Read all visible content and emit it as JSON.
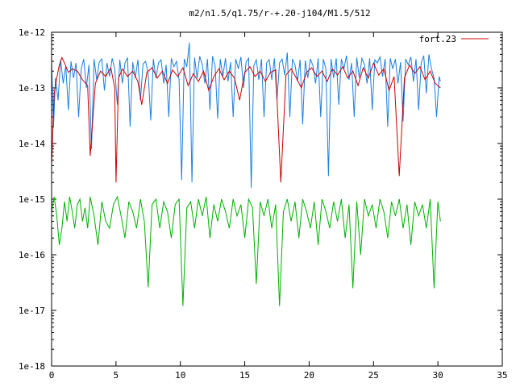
{
  "chart_data": {
    "type": "line",
    "title": "m2/n1.5/q1.75/r-+.20-j104/M1.5/512",
    "xlabel": "",
    "ylabel": "",
    "xlim": [
      0,
      35
    ],
    "ylim": [
      1e-18,
      1e-12
    ],
    "y_scale": "log",
    "grid": false,
    "legend_position": "top-right",
    "x_ticks": [
      "0",
      "5",
      "10",
      "15",
      "20",
      "25",
      "30",
      "35"
    ],
    "y_ticks": [
      "1e-18",
      "1e-17",
      "1e-16",
      "1e-15",
      "1e-14",
      "1e-13",
      "1e-12"
    ],
    "series": [
      {
        "name": "fort.23",
        "color": "#cc0000",
        "x": [
          0.0,
          0.2,
          0.4,
          0.6,
          0.8,
          1.0,
          1.3,
          1.6,
          2.0,
          2.4,
          2.8,
          3.0,
          3.4,
          3.8,
          4.2,
          4.6,
          4.9,
          5.0,
          5.2,
          5.5,
          5.9,
          6.3,
          6.7,
          7.0,
          7.4,
          7.8,
          8.2,
          8.6,
          9.0,
          9.4,
          9.8,
          10.2,
          10.6,
          11.0,
          11.4,
          11.8,
          12.2,
          12.6,
          13.0,
          13.4,
          13.8,
          14.2,
          14.6,
          15.0,
          15.4,
          15.8,
          16.2,
          16.6,
          17.0,
          17.4,
          17.8,
          18.2,
          18.6,
          19.0,
          19.4,
          19.8,
          20.2,
          20.6,
          21.0,
          21.4,
          21.8,
          22.2,
          22.6,
          23.0,
          23.4,
          23.8,
          24.2,
          24.6,
          25.0,
          25.4,
          25.8,
          26.2,
          26.6,
          27.0,
          27.4,
          27.8,
          28.2,
          28.6,
          29.0,
          29.4,
          29.8,
          30.2
        ],
        "y": [
          4e-15,
          8e-14,
          1.5e-13,
          2.6e-13,
          3.5e-13,
          2.8e-13,
          1.9e-13,
          2.2e-13,
          2e-13,
          1.4e-13,
          1.1e-13,
          6e-15,
          1.2e-13,
          2e-13,
          1.6e-13,
          2.3e-13,
          1e-13,
          2e-15,
          1.5e-13,
          2.2e-13,
          1.6e-13,
          2e-13,
          1.3e-13,
          5e-14,
          1.9e-13,
          2.3e-13,
          1.5e-13,
          2e-13,
          1.2e-13,
          2.1e-13,
          1.6e-13,
          2.3e-13,
          1.1e-13,
          1.8e-13,
          1.3e-13,
          2e-13,
          9e-14,
          1.6e-13,
          2.2e-13,
          1.4e-13,
          2e-13,
          1.5e-13,
          6e-14,
          1.9e-13,
          2.4e-13,
          1.6e-13,
          2e-13,
          1.3e-13,
          1.9e-13,
          2.1e-13,
          2e-15,
          1.7e-13,
          2.2e-13,
          1.5e-13,
          1e-13,
          1.9e-13,
          2.3e-13,
          1.6e-13,
          2e-13,
          1.3e-13,
          2.2e-13,
          1.7e-13,
          2.4e-13,
          1.5e-13,
          2e-13,
          1.1e-13,
          2.3e-13,
          1.5e-13,
          2.8e-13,
          1.7e-13,
          2.2e-13,
          9e-14,
          1.6e-13,
          2.6e-15,
          1.5e-13,
          2.6e-13,
          1.8e-13,
          2.4e-13,
          1.4e-13,
          2e-13,
          1.2e-13,
          1e-13
        ]
      },
      {
        "color": "#1c7ee0",
        "x": [
          0.0,
          0.15,
          0.3,
          0.5,
          0.7,
          0.9,
          1.1,
          1.3,
          1.5,
          1.7,
          1.9,
          2.1,
          2.3,
          2.5,
          2.7,
          2.9,
          3.1,
          3.3,
          3.5,
          3.7,
          3.9,
          4.1,
          4.3,
          4.5,
          4.7,
          4.9,
          5.1,
          5.3,
          5.5,
          5.7,
          5.9,
          6.1,
          6.3,
          6.5,
          6.7,
          6.9,
          7.1,
          7.3,
          7.5,
          7.7,
          7.9,
          8.1,
          8.3,
          8.5,
          8.7,
          8.9,
          9.1,
          9.3,
          9.5,
          9.7,
          9.9,
          10.1,
          10.3,
          10.5,
          10.7,
          10.9,
          11.1,
          11.3,
          11.5,
          11.7,
          11.9,
          12.1,
          12.3,
          12.5,
          12.7,
          12.9,
          13.1,
          13.3,
          13.5,
          13.7,
          13.9,
          14.1,
          14.3,
          14.5,
          14.7,
          14.9,
          15.1,
          15.3,
          15.5,
          15.7,
          15.9,
          16.1,
          16.3,
          16.5,
          16.7,
          16.9,
          17.1,
          17.3,
          17.5,
          17.7,
          17.9,
          18.1,
          18.3,
          18.5,
          18.7,
          18.9,
          19.1,
          19.3,
          19.5,
          19.7,
          19.9,
          20.1,
          20.3,
          20.5,
          20.7,
          20.9,
          21.1,
          21.3,
          21.5,
          21.7,
          21.9,
          22.1,
          22.3,
          22.5,
          22.7,
          22.9,
          23.1,
          23.3,
          23.5,
          23.7,
          23.9,
          24.1,
          24.3,
          24.5,
          24.7,
          24.9,
          25.1,
          25.3,
          25.5,
          25.7,
          25.9,
          26.1,
          26.3,
          26.5,
          26.7,
          26.9,
          27.1,
          27.3,
          27.5,
          27.7,
          27.9,
          28.1,
          28.3,
          28.5,
          28.7,
          28.9,
          29.1,
          29.3,
          29.5,
          29.7,
          29.9,
          30.1,
          30.2
        ],
        "y": [
          3e-13,
          2e-14,
          1.5e-13,
          6e-14,
          3.2e-13,
          1.2e-13,
          2.5e-13,
          4e-14,
          3e-13,
          1.5e-13,
          2.8e-13,
          3e-14,
          2.2e-13,
          3.3e-13,
          1e-13,
          2.6e-13,
          8e-15,
          3.3e-13,
          1.4e-13,
          2.9e-13,
          3.3e-13,
          9e-14,
          2.8e-13,
          1.6e-13,
          3.4e-13,
          2.2e-13,
          5e-14,
          3.2e-13,
          1.2e-13,
          2.8e-13,
          3.5e-13,
          2e-14,
          2.9e-13,
          1.5e-13,
          3.2e-13,
          6e-14,
          2.7e-13,
          3e-13,
          1.8e-13,
          2.6e-14,
          3.3e-13,
          1.5e-13,
          2.8e-13,
          3.2e-13,
          1.2e-13,
          2.6e-13,
          3e-14,
          3.4e-13,
          2.4e-13,
          3e-13,
          1.4e-13,
          2.2e-15,
          3.3e-13,
          2.4e-13,
          6.5e-13,
          2e-15,
          3.5e-13,
          1.5e-13,
          3.7e-13,
          2.6e-13,
          1.2e-13,
          3.3e-13,
          4e-14,
          3.7e-13,
          2.5e-13,
          2.8e-14,
          3.3e-13,
          1.6e-13,
          3.4e-13,
          1.3e-13,
          2.9e-13,
          3e-14,
          3.3e-13,
          2.2e-13,
          3.6e-13,
          1e-13,
          2.9e-13,
          3.4e-13,
          1.6e-15,
          2.5e-13,
          3.2e-13,
          1.4e-13,
          3.3e-13,
          3e-14,
          2.8e-13,
          3.2e-13,
          1.4e-13,
          3.4e-13,
          6e-14,
          2.8e-13,
          3.3e-13,
          1.7e-13,
          4.3e-13,
          3e-14,
          3.3e-13,
          2.6e-13,
          1.3e-13,
          3.2e-13,
          2.2e-14,
          3.1e-13,
          1.5e-13,
          3.3e-13,
          2.5e-13,
          1.2e-13,
          3.4e-13,
          3e-14,
          3.3e-13,
          2.2e-13,
          2.6e-15,
          3.3e-13,
          1.5e-13,
          3.4e-13,
          5e-14,
          3.3e-13,
          2.2e-13,
          3.8e-13,
          1.4e-13,
          2.8e-13,
          3e-14,
          3.5e-13,
          1.5e-13,
          3.4e-13,
          2.6e-13,
          1.2e-13,
          3.4e-13,
          4e-14,
          3.2e-13,
          2.8e-13,
          3.6e-13,
          1.6e-13,
          3.3e-13,
          2e-14,
          3.4e-13,
          2.2e-13,
          3.3e-13,
          1.2e-13,
          2.9e-13,
          2.5e-14,
          3.3e-13,
          2.6e-13,
          3.6e-13,
          1.3e-13,
          3.3e-13,
          4e-14,
          2.8e-13,
          3.8e-13,
          8e-14,
          4e-13,
          2.2e-13,
          1.5e-13,
          3e-14,
          1.6e-13,
          1.3e-13
        ]
      },
      {
        "color": "#00b000",
        "x": [
          0.0,
          0.2,
          0.4,
          0.6,
          0.8,
          1.0,
          1.2,
          1.4,
          1.6,
          1.8,
          2.0,
          2.2,
          2.4,
          2.6,
          2.8,
          3.0,
          3.3,
          3.6,
          3.9,
          4.2,
          4.5,
          4.8,
          5.1,
          5.4,
          5.7,
          6.0,
          6.3,
          6.6,
          6.9,
          7.2,
          7.5,
          7.8,
          8.1,
          8.4,
          8.7,
          9.0,
          9.3,
          9.6,
          9.9,
          10.2,
          10.5,
          10.8,
          11.1,
          11.4,
          11.7,
          12.0,
          12.3,
          12.6,
          12.9,
          13.2,
          13.5,
          13.8,
          14.1,
          14.4,
          14.7,
          15.0,
          15.3,
          15.6,
          15.9,
          16.2,
          16.5,
          16.8,
          17.1,
          17.4,
          17.7,
          18.0,
          18.3,
          18.6,
          18.9,
          19.2,
          19.5,
          19.8,
          20.1,
          20.4,
          20.7,
          21.0,
          21.3,
          21.6,
          21.9,
          22.2,
          22.5,
          22.8,
          23.1,
          23.4,
          23.7,
          24.0,
          24.3,
          24.6,
          24.9,
          25.2,
          25.5,
          25.8,
          26.1,
          26.4,
          26.7,
          27.0,
          27.3,
          27.6,
          27.9,
          28.2,
          28.5,
          28.8,
          29.1,
          29.4,
          29.7,
          30.0,
          30.2
        ],
        "y": [
          6e-16,
          1.1e-15,
          5e-16,
          1.5e-16,
          3e-16,
          9e-16,
          4e-16,
          1.1e-15,
          6e-16,
          3e-16,
          8e-16,
          1e-15,
          4e-16,
          7e-16,
          3e-16,
          1.1e-15,
          5e-16,
          1.5e-16,
          9e-16,
          4e-16,
          3e-16,
          8e-16,
          1.1e-15,
          5e-16,
          2e-16,
          9e-16,
          6e-16,
          3e-16,
          1e-15,
          4e-16,
          2.6e-17,
          8e-16,
          1e-15,
          3e-16,
          9e-16,
          6e-16,
          2e-16,
          8e-16,
          1e-15,
          1.2e-17,
          7e-16,
          9e-16,
          3e-16,
          1e-15,
          5e-16,
          1.1e-15,
          2e-16,
          8e-16,
          4e-16,
          1e-15,
          6e-16,
          3e-16,
          1e-15,
          5e-16,
          8e-16,
          2e-16,
          1e-15,
          7e-16,
          3e-17,
          9e-16,
          5e-16,
          1e-15,
          3e-16,
          8e-16,
          1.2e-17,
          6e-16,
          1e-15,
          4e-16,
          9e-16,
          2e-16,
          1e-15,
          6e-16,
          3e-16,
          9e-16,
          1.5e-16,
          1e-15,
          6e-16,
          3e-16,
          9e-16,
          4e-16,
          1e-15,
          2e-16,
          8e-16,
          2.5e-17,
          9e-16,
          1e-16,
          1e-15,
          5e-16,
          8e-16,
          3e-16,
          1e-15,
          6e-16,
          2e-16,
          9e-16,
          5e-16,
          1e-15,
          3e-16,
          8e-16,
          1.5e-16,
          9e-16,
          5e-16,
          8e-16,
          3e-16,
          1e-15,
          2.5e-17,
          9e-16,
          4e-16
        ]
      }
    ]
  }
}
